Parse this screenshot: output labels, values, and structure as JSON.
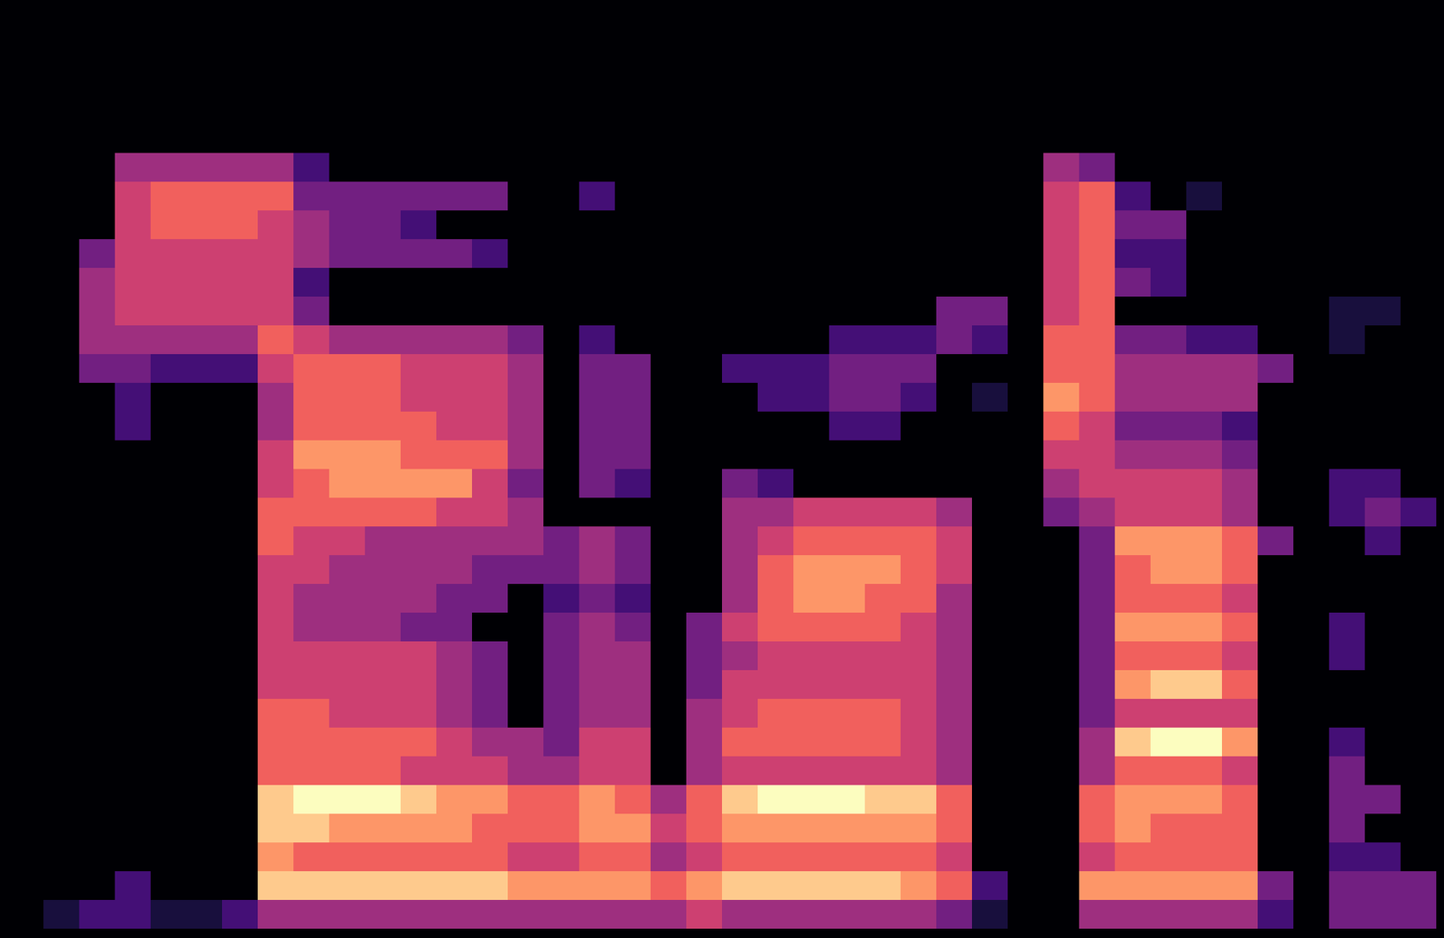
{
  "chart_data": {
    "type": "heatmap",
    "color": "magma",
    "tick_labels": false,
    "color_range": [
      0,
      9
    ],
    "cells": [
      [
        0,
        0,
        0,
        0,
        0,
        0,
        0,
        0,
        0,
        0,
        0,
        0,
        0,
        0,
        0,
        0,
        0,
        0,
        0,
        0,
        0,
        0,
        0,
        0,
        0,
        0,
        0,
        0,
        0,
        0,
        0,
        0,
        0,
        0,
        0,
        0,
        0,
        0,
        0,
        0
      ],
      [
        0,
        0,
        0,
        0,
        0,
        0,
        0,
        0,
        0,
        0,
        0,
        0,
        0,
        0,
        0,
        0,
        0,
        0,
        0,
        0,
        0,
        0,
        0,
        0,
        0,
        0,
        0,
        0,
        0,
        0,
        0,
        0,
        0,
        0,
        0,
        0,
        0,
        0,
        0,
        0
      ],
      [
        0,
        0,
        0,
        0,
        0,
        0,
        0,
        0,
        0,
        0,
        0,
        0,
        0,
        0,
        0,
        0,
        0,
        0,
        0,
        0,
        0,
        0,
        0,
        0,
        0,
        0,
        0,
        0,
        0,
        0,
        0,
        0,
        0,
        0,
        0,
        0,
        0,
        0,
        0,
        0
      ],
      [
        0,
        0,
        0,
        0,
        0,
        0,
        0,
        0,
        0,
        0,
        0,
        0,
        0,
        0,
        0,
        0,
        0,
        0,
        0,
        0,
        0,
        0,
        0,
        0,
        0,
        0,
        0,
        0,
        0,
        0,
        0,
        0,
        0,
        0,
        0,
        0,
        0,
        0,
        0,
        0
      ],
      [
        0,
        0,
        0,
        0,
        0,
        0,
        0,
        0,
        0,
        0,
        0,
        0,
        0,
        0,
        0,
        0,
        0,
        0,
        0,
        0,
        0,
        0,
        0,
        0,
        0,
        0,
        0,
        0,
        0,
        0,
        0,
        0,
        0,
        0,
        0,
        0,
        0,
        0,
        0,
        0
      ],
      [
        0,
        0,
        0,
        4,
        4,
        4,
        4,
        4,
        2,
        0,
        0,
        0,
        0,
        0,
        0,
        0,
        0,
        0,
        0,
        0,
        0,
        0,
        0,
        0,
        0,
        0,
        0,
        0,
        0,
        4,
        3,
        0,
        0,
        0,
        0,
        0,
        0,
        0,
        0,
        0
      ],
      [
        0,
        0,
        0,
        5,
        6,
        6,
        6,
        6,
        3,
        3,
        3,
        3,
        3,
        3,
        0,
        0,
        2,
        0,
        0,
        0,
        0,
        0,
        0,
        0,
        0,
        0,
        0,
        0,
        0,
        5,
        6,
        2,
        0,
        1,
        0,
        0,
        0,
        0,
        0,
        0
      ],
      [
        0,
        0,
        0,
        5,
        6,
        6,
        6,
        5,
        4,
        3,
        3,
        2,
        0,
        0,
        0,
        0,
        0,
        0,
        0,
        0,
        0,
        0,
        0,
        0,
        0,
        0,
        0,
        0,
        0,
        5,
        6,
        3,
        3,
        0,
        0,
        0,
        0,
        0,
        0,
        0
      ],
      [
        0,
        0,
        3,
        5,
        5,
        5,
        5,
        5,
        4,
        3,
        3,
        3,
        3,
        2,
        0,
        0,
        0,
        0,
        0,
        0,
        0,
        0,
        0,
        0,
        0,
        0,
        0,
        0,
        0,
        5,
        6,
        2,
        2,
        0,
        0,
        0,
        0,
        0,
        0,
        0
      ],
      [
        0,
        0,
        4,
        5,
        5,
        5,
        5,
        5,
        2,
        0,
        0,
        0,
        0,
        0,
        0,
        0,
        0,
        0,
        0,
        0,
        0,
        0,
        0,
        0,
        0,
        0,
        0,
        0,
        0,
        5,
        6,
        3,
        2,
        0,
        0,
        0,
        0,
        0,
        0,
        0
      ],
      [
        0,
        0,
        4,
        5,
        5,
        5,
        5,
        5,
        3,
        0,
        0,
        0,
        0,
        0,
        0,
        0,
        0,
        0,
        0,
        0,
        0,
        0,
        0,
        0,
        0,
        0,
        3,
        3,
        0,
        5,
        6,
        0,
        0,
        0,
        0,
        0,
        0,
        1,
        1,
        0
      ],
      [
        0,
        0,
        4,
        4,
        4,
        4,
        4,
        6,
        5,
        4,
        4,
        4,
        4,
        4,
        3,
        0,
        2,
        0,
        0,
        0,
        0,
        0,
        0,
        2,
        2,
        2,
        3,
        2,
        0,
        6,
        6,
        3,
        3,
        2,
        2,
        0,
        0,
        1,
        0,
        0
      ],
      [
        0,
        0,
        3,
        3,
        2,
        2,
        2,
        5,
        6,
        6,
        6,
        5,
        5,
        5,
        4,
        0,
        3,
        3,
        0,
        0,
        2,
        2,
        2,
        3,
        3,
        3,
        0,
        0,
        0,
        6,
        6,
        4,
        4,
        4,
        4,
        3,
        0,
        0,
        0,
        0
      ],
      [
        0,
        0,
        0,
        2,
        0,
        0,
        0,
        4,
        6,
        6,
        6,
        5,
        5,
        5,
        4,
        0,
        3,
        3,
        0,
        0,
        0,
        2,
        2,
        3,
        3,
        2,
        0,
        1,
        0,
        7,
        6,
        4,
        4,
        4,
        4,
        0,
        0,
        0,
        0,
        0
      ],
      [
        0,
        0,
        0,
        2,
        0,
        0,
        0,
        4,
        6,
        6,
        6,
        6,
        5,
        5,
        4,
        0,
        3,
        3,
        0,
        0,
        0,
        0,
        0,
        2,
        2,
        0,
        0,
        0,
        0,
        6,
        5,
        3,
        3,
        3,
        2,
        0,
        0,
        0,
        0,
        0
      ],
      [
        0,
        0,
        0,
        0,
        0,
        0,
        0,
        5,
        7,
        7,
        7,
        6,
        6,
        6,
        4,
        0,
        3,
        3,
        0,
        0,
        0,
        0,
        0,
        0,
        0,
        0,
        0,
        0,
        0,
        5,
        5,
        4,
        4,
        4,
        3,
        0,
        0,
        0,
        0,
        0
      ],
      [
        0,
        0,
        0,
        0,
        0,
        0,
        0,
        5,
        6,
        7,
        7,
        7,
        7,
        5,
        3,
        0,
        3,
        2,
        0,
        0,
        3,
        2,
        0,
        0,
        0,
        0,
        0,
        0,
        0,
        4,
        5,
        5,
        5,
        5,
        4,
        0,
        0,
        2,
        2,
        0
      ],
      [
        0,
        0,
        0,
        0,
        0,
        0,
        0,
        6,
        6,
        6,
        6,
        6,
        5,
        5,
        4,
        0,
        0,
        0,
        0,
        0,
        4,
        4,
        5,
        5,
        5,
        5,
        4,
        0,
        0,
        3,
        4,
        5,
        5,
        5,
        4,
        0,
        0,
        2,
        3,
        2
      ],
      [
        0,
        0,
        0,
        0,
        0,
        0,
        0,
        6,
        5,
        5,
        4,
        4,
        4,
        4,
        4,
        3,
        4,
        3,
        0,
        0,
        4,
        5,
        6,
        6,
        6,
        6,
        5,
        0,
        0,
        0,
        3,
        7,
        7,
        7,
        6,
        3,
        0,
        0,
        2,
        0
      ],
      [
        0,
        0,
        0,
        0,
        0,
        0,
        0,
        5,
        5,
        4,
        4,
        4,
        4,
        3,
        3,
        3,
        4,
        3,
        0,
        0,
        4,
        6,
        7,
        7,
        7,
        6,
        5,
        0,
        0,
        0,
        3,
        6,
        7,
        7,
        6,
        0,
        0,
        0,
        0,
        0
      ],
      [
        0,
        0,
        0,
        0,
        0,
        0,
        0,
        5,
        4,
        4,
        4,
        4,
        3,
        3,
        0,
        2,
        3,
        2,
        0,
        0,
        4,
        6,
        7,
        7,
        6,
        6,
        4,
        0,
        0,
        0,
        3,
        6,
        6,
        6,
        5,
        0,
        0,
        0,
        0,
        0
      ],
      [
        0,
        0,
        0,
        0,
        0,
        0,
        0,
        5,
        4,
        4,
        4,
        3,
        3,
        0,
        0,
        3,
        4,
        3,
        0,
        3,
        5,
        6,
        6,
        6,
        6,
        5,
        4,
        0,
        0,
        0,
        3,
        7,
        7,
        7,
        6,
        0,
        0,
        2,
        0,
        0
      ],
      [
        0,
        0,
        0,
        0,
        0,
        0,
        0,
        5,
        5,
        5,
        5,
        5,
        4,
        3,
        0,
        3,
        4,
        4,
        0,
        3,
        4,
        5,
        5,
        5,
        5,
        5,
        4,
        0,
        0,
        0,
        3,
        6,
        6,
        6,
        5,
        0,
        0,
        2,
        0,
        0
      ],
      [
        0,
        0,
        0,
        0,
        0,
        0,
        0,
        5,
        5,
        5,
        5,
        5,
        4,
        3,
        0,
        3,
        4,
        4,
        0,
        3,
        5,
        5,
        5,
        5,
        5,
        5,
        4,
        0,
        0,
        0,
        3,
        7,
        8,
        8,
        6,
        0,
        0,
        0,
        0,
        0
      ],
      [
        0,
        0,
        0,
        0,
        0,
        0,
        0,
        6,
        6,
        5,
        5,
        5,
        4,
        3,
        0,
        3,
        4,
        4,
        0,
        4,
        5,
        6,
        6,
        6,
        6,
        5,
        4,
        0,
        0,
        0,
        3,
        5,
        5,
        5,
        5,
        0,
        0,
        0,
        0,
        0
      ],
      [
        0,
        0,
        0,
        0,
        0,
        0,
        0,
        6,
        6,
        6,
        6,
        6,
        5,
        4,
        4,
        3,
        5,
        5,
        0,
        4,
        6,
        6,
        6,
        6,
        6,
        5,
        4,
        0,
        0,
        0,
        4,
        8,
        9,
        9,
        7,
        0,
        0,
        2,
        0,
        0
      ],
      [
        0,
        0,
        0,
        0,
        0,
        0,
        0,
        6,
        6,
        6,
        6,
        5,
        5,
        5,
        4,
        4,
        5,
        5,
        0,
        4,
        5,
        5,
        5,
        5,
        5,
        5,
        4,
        0,
        0,
        0,
        4,
        6,
        6,
        6,
        5,
        0,
        0,
        3,
        0,
        0
      ],
      [
        0,
        0,
        0,
        0,
        0,
        0,
        0,
        8,
        9,
        9,
        9,
        8,
        7,
        7,
        6,
        6,
        7,
        6,
        4,
        6,
        8,
        9,
        9,
        9,
        8,
        8,
        6,
        0,
        0,
        0,
        6,
        7,
        7,
        7,
        6,
        0,
        0,
        3,
        3,
        0
      ],
      [
        0,
        0,
        0,
        0,
        0,
        0,
        0,
        8,
        8,
        7,
        7,
        7,
        7,
        6,
        6,
        6,
        7,
        7,
        5,
        6,
        7,
        7,
        7,
        7,
        7,
        7,
        6,
        0,
        0,
        0,
        6,
        7,
        6,
        6,
        6,
        0,
        0,
        3,
        0,
        0
      ],
      [
        0,
        0,
        0,
        0,
        0,
        0,
        0,
        7,
        6,
        6,
        6,
        6,
        6,
        6,
        5,
        5,
        6,
        6,
        4,
        5,
        6,
        6,
        6,
        6,
        6,
        6,
        5,
        0,
        0,
        0,
        5,
        6,
        6,
        6,
        6,
        0,
        0,
        2,
        2,
        0
      ],
      [
        0,
        0,
        0,
        2,
        0,
        0,
        0,
        8,
        8,
        8,
        8,
        8,
        8,
        8,
        7,
        7,
        7,
        7,
        6,
        7,
        8,
        8,
        8,
        8,
        8,
        7,
        6,
        2,
        0,
        0,
        7,
        7,
        7,
        7,
        7,
        3,
        0,
        3,
        3,
        3
      ],
      [
        0,
        1,
        2,
        2,
        1,
        1,
        2,
        4,
        4,
        4,
        4,
        4,
        4,
        4,
        4,
        4,
        4,
        4,
        4,
        5,
        4,
        4,
        4,
        4,
        4,
        4,
        3,
        1,
        0,
        0,
        4,
        4,
        4,
        4,
        4,
        2,
        0,
        3,
        3,
        3
      ]
    ]
  }
}
